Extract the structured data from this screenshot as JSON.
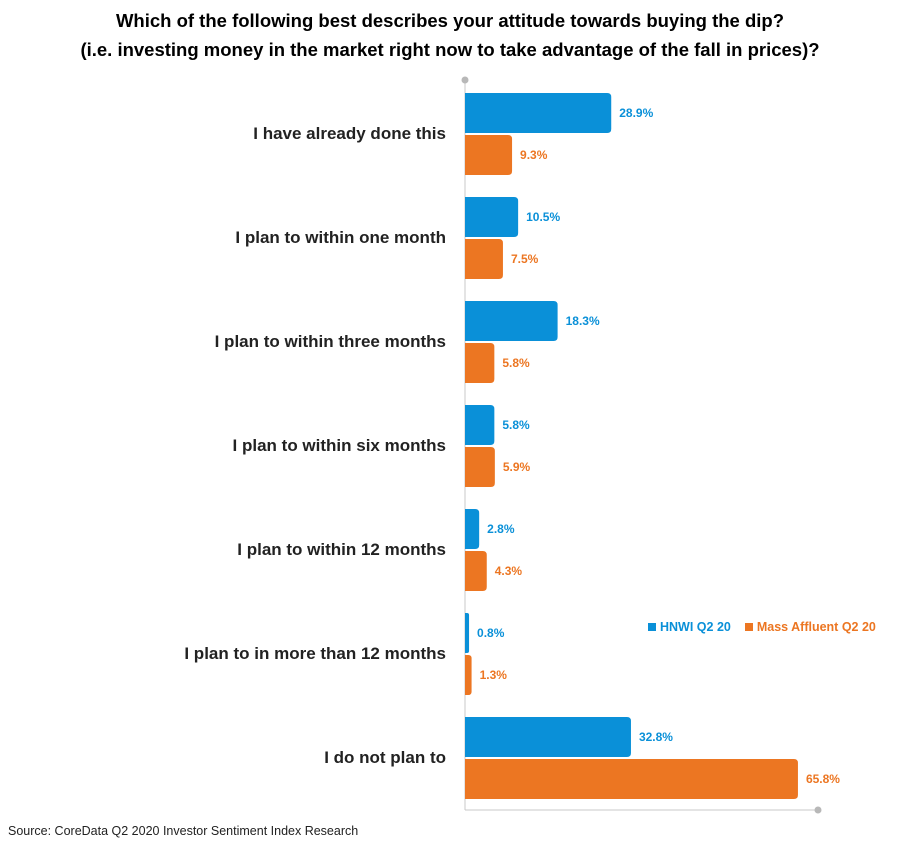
{
  "title_line1": "Which of the following best describes your attitude towards buying the dip?",
  "title_line2": "(i.e. investing money in the market right now to take advantage of the fall in prices)?",
  "source": "Source: CoreData Q2 2020 Investor Sentiment Index Research",
  "colors": {
    "hnwi": "#0a90d8",
    "mass_affluent": "#ec7622",
    "axis": "#c8c8c8"
  },
  "chart_data": {
    "type": "bar",
    "orientation": "horizontal",
    "title": "Which of the following best describes your attitude towards buying the dip? (i.e. investing money in the market right now to take advantage of the fall in prices)?",
    "categories": [
      "I have already done this",
      "I plan to within one month",
      "I plan to within three months",
      "I plan to within six months",
      "I plan to within 12 months",
      "I plan to in more than 12 months",
      "I do not plan to"
    ],
    "series": [
      {
        "name": "HNWI Q2 20",
        "values": [
          28.9,
          10.5,
          18.3,
          5.8,
          2.8,
          0.8,
          32.8
        ],
        "labels": [
          "28.9%",
          "10.5%",
          "18.3%",
          "5.8%",
          "2.8%",
          "0.8%",
          "32.8%"
        ]
      },
      {
        "name": "Mass Affluent Q2 20",
        "values": [
          9.3,
          7.5,
          5.8,
          5.9,
          4.3,
          1.3,
          65.8
        ],
        "labels": [
          "9.3%",
          "7.5%",
          "5.8%",
          "5.9%",
          "4.3%",
          "1.3%",
          "65.8%"
        ]
      }
    ],
    "xlim": [
      0,
      70
    ],
    "grid": false,
    "legend_position": "right"
  }
}
